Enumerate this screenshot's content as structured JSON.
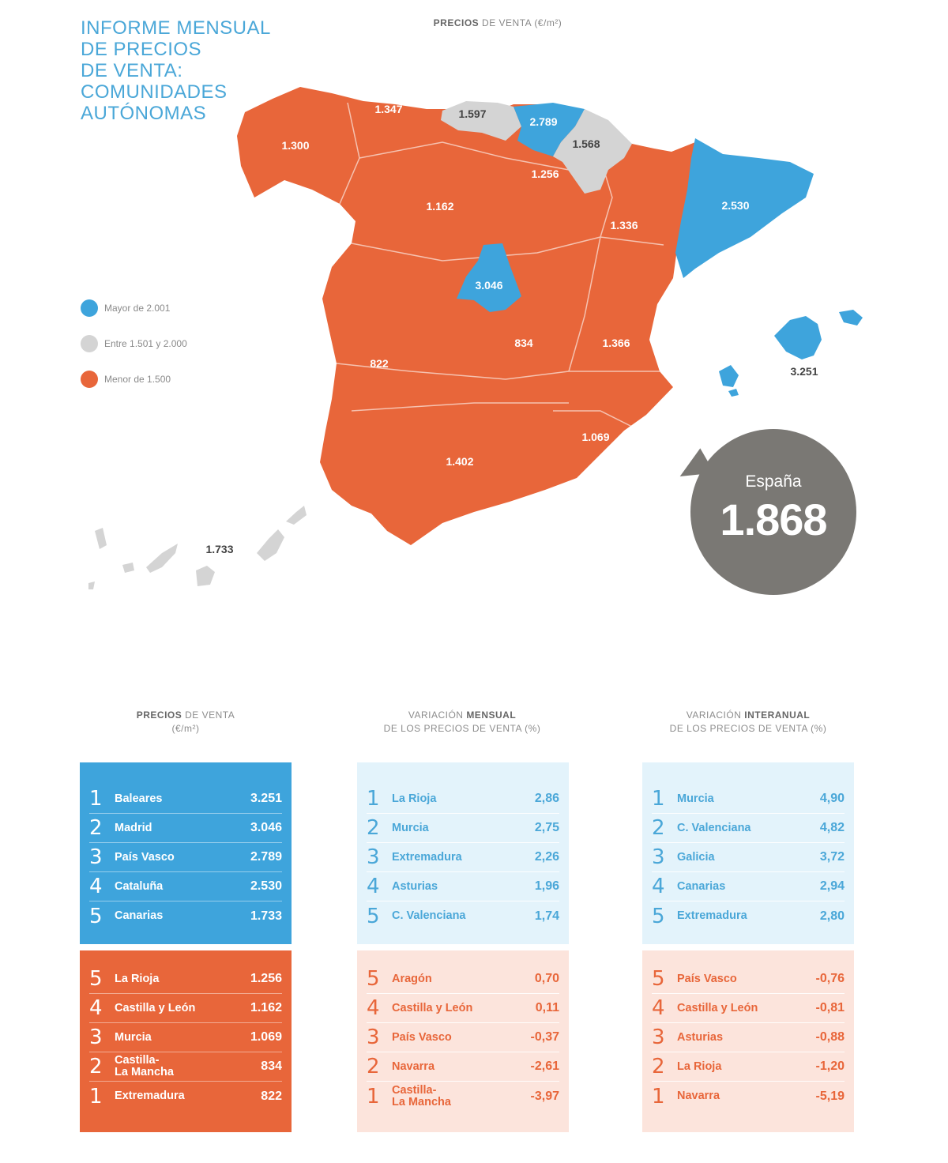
{
  "header": {
    "title_lines": [
      "INFORME MENSUAL",
      "DE PRECIOS",
      "DE VENTA:",
      "COMUNIDADES",
      "AUTÓNOMAS"
    ],
    "map_heading_bold": "PRECIOS",
    "map_heading_rest": " DE VENTA (€/m²)"
  },
  "colors": {
    "mayor": "#3ea4dc",
    "entre": "#d4d4d4",
    "menor": "#e8663a",
    "bubble": "#7a7874"
  },
  "legend": [
    {
      "label": "Mayor de 2.001",
      "color": "#3ea4dc"
    },
    {
      "label": "Entre 1.501 y 2.000",
      "color": "#d4d4d4"
    },
    {
      "label": "Menor de 1.500",
      "color": "#e8663a"
    }
  ],
  "map_values": {
    "galicia": "1.300",
    "asturias": "1.347",
    "cantabria": "1.597",
    "pais_vasco": "2.789",
    "navarra": "1.568",
    "la_rioja": "1.256",
    "castilla_leon": "1.162",
    "aragon": "1.336",
    "cataluna": "2.530",
    "madrid": "3.046",
    "extremadura": "822",
    "castilla_la_mancha": "834",
    "c_valenciana": "1.366",
    "murcia": "1.069",
    "andalucia": "1.402",
    "baleares": "3.251",
    "canarias": "1.733"
  },
  "spain": {
    "label": "España",
    "value": "1.868"
  },
  "columns": [
    {
      "heading_line1_pre": "",
      "heading_line1_bold": "PRECIOS",
      "heading_line1_post": " DE VENTA",
      "heading_line2": "(€/m²)",
      "top": [
        {
          "rank": "1",
          "name": "Baleares",
          "value": "3.251"
        },
        {
          "rank": "2",
          "name": "Madrid",
          "value": "3.046"
        },
        {
          "rank": "3",
          "name": "País Vasco",
          "value": "2.789"
        },
        {
          "rank": "4",
          "name": "Cataluña",
          "value": "2.530"
        },
        {
          "rank": "5",
          "name": "Canarias",
          "value": "1.733"
        }
      ],
      "bottom": [
        {
          "rank": "5",
          "name": "La Rioja",
          "value": "1.256"
        },
        {
          "rank": "4",
          "name": "Castilla y León",
          "value": "1.162"
        },
        {
          "rank": "3",
          "name": "Murcia",
          "value": "1.069"
        },
        {
          "rank": "2",
          "name": "Castilla-\nLa Mancha",
          "value": "834"
        },
        {
          "rank": "1",
          "name": "Extremadura",
          "value": "822"
        }
      ]
    },
    {
      "heading_line1_pre": "VARIACIÓN ",
      "heading_line1_bold": "MENSUAL",
      "heading_line1_post": "",
      "heading_line2": "DE LOS PRECIOS DE VENTA (%)",
      "top": [
        {
          "rank": "1",
          "name": "La Rioja",
          "value": "2,86"
        },
        {
          "rank": "2",
          "name": "Murcia",
          "value": "2,75"
        },
        {
          "rank": "3",
          "name": "Extremadura",
          "value": "2,26"
        },
        {
          "rank": "4",
          "name": "Asturias",
          "value": "1,96"
        },
        {
          "rank": "5",
          "name": "C. Valenciana",
          "value": "1,74"
        }
      ],
      "bottom": [
        {
          "rank": "5",
          "name": "Aragón",
          "value": "0,70"
        },
        {
          "rank": "4",
          "name": "Castilla y León",
          "value": "0,11"
        },
        {
          "rank": "3",
          "name": "País Vasco",
          "value": "-0,37"
        },
        {
          "rank": "2",
          "name": "Navarra",
          "value": "-2,61"
        },
        {
          "rank": "1",
          "name": "Castilla-\nLa Mancha",
          "value": "-3,97"
        }
      ]
    },
    {
      "heading_line1_pre": "VARIACIÓN ",
      "heading_line1_bold": "INTERANUAL",
      "heading_line1_post": "",
      "heading_line2": "DE LOS PRECIOS DE VENTA (%)",
      "top": [
        {
          "rank": "1",
          "name": "Murcia",
          "value": "4,90"
        },
        {
          "rank": "2",
          "name": "C. Valenciana",
          "value": "4,82"
        },
        {
          "rank": "3",
          "name": "Galicia",
          "value": "3,72"
        },
        {
          "rank": "4",
          "name": "Canarias",
          "value": "2,94"
        },
        {
          "rank": "5",
          "name": "Extremadura",
          "value": "2,80"
        }
      ],
      "bottom": [
        {
          "rank": "5",
          "name": "País Vasco",
          "value": "-0,76"
        },
        {
          "rank": "4",
          "name": "Castilla y León",
          "value": "-0,81"
        },
        {
          "rank": "3",
          "name": "Asturias",
          "value": "-0,88"
        },
        {
          "rank": "2",
          "name": "La Rioja",
          "value": "-1,20"
        },
        {
          "rank": "1",
          "name": "Navarra",
          "value": "-5,19"
        }
      ]
    }
  ]
}
